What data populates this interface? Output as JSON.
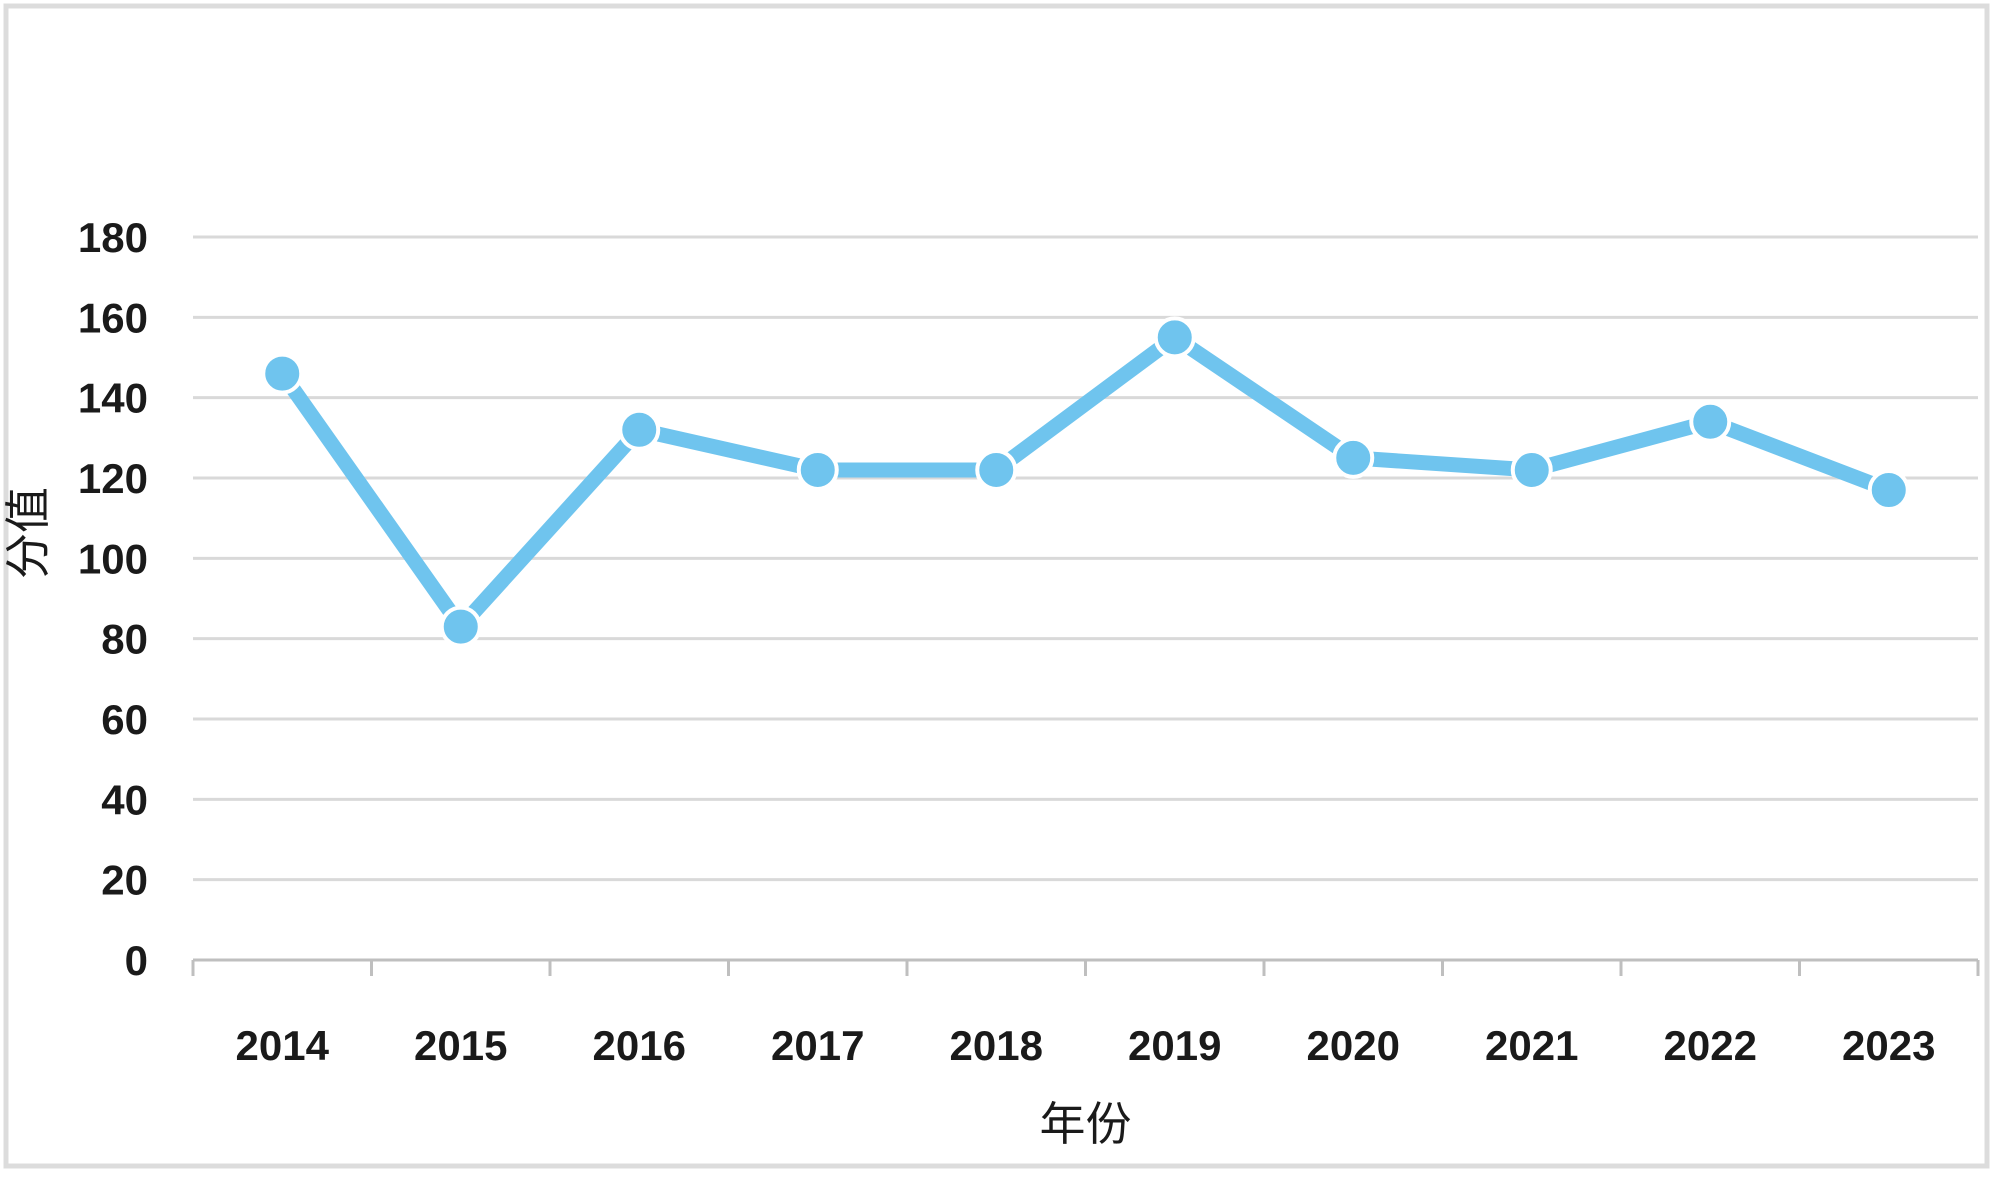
{
  "figure": {
    "background": "#FFFFFF",
    "border_color": "#DCDCDC"
  },
  "chart_data": {
    "type": "line",
    "title": "",
    "categories": [
      "2014",
      "2015",
      "2016",
      "2017",
      "2018",
      "2019",
      "2020",
      "2021",
      "2022",
      "2023"
    ],
    "series": [
      {
        "name": "分值",
        "values": [
          146,
          83,
          132,
          122,
          122,
          155,
          125,
          122,
          134,
          117
        ]
      }
    ],
    "xlabel": "年份",
    "ylabel": "分值",
    "ylim": [
      0,
      180
    ],
    "y_ticks": [
      0,
      20,
      40,
      60,
      80,
      100,
      120,
      140,
      160,
      180
    ],
    "grid": "horizontal-only",
    "legend": "none",
    "marker": "circle",
    "colors": {
      "line": "#6FC4EE",
      "marker_fill": "#6FC4EE",
      "marker_ring": "#FFFFFF",
      "gridline": "#D9D9D9",
      "axis": "#BFBFBF",
      "tick_text": "#1A1A1A",
      "axis_title_text": "#1A1A1A"
    }
  }
}
